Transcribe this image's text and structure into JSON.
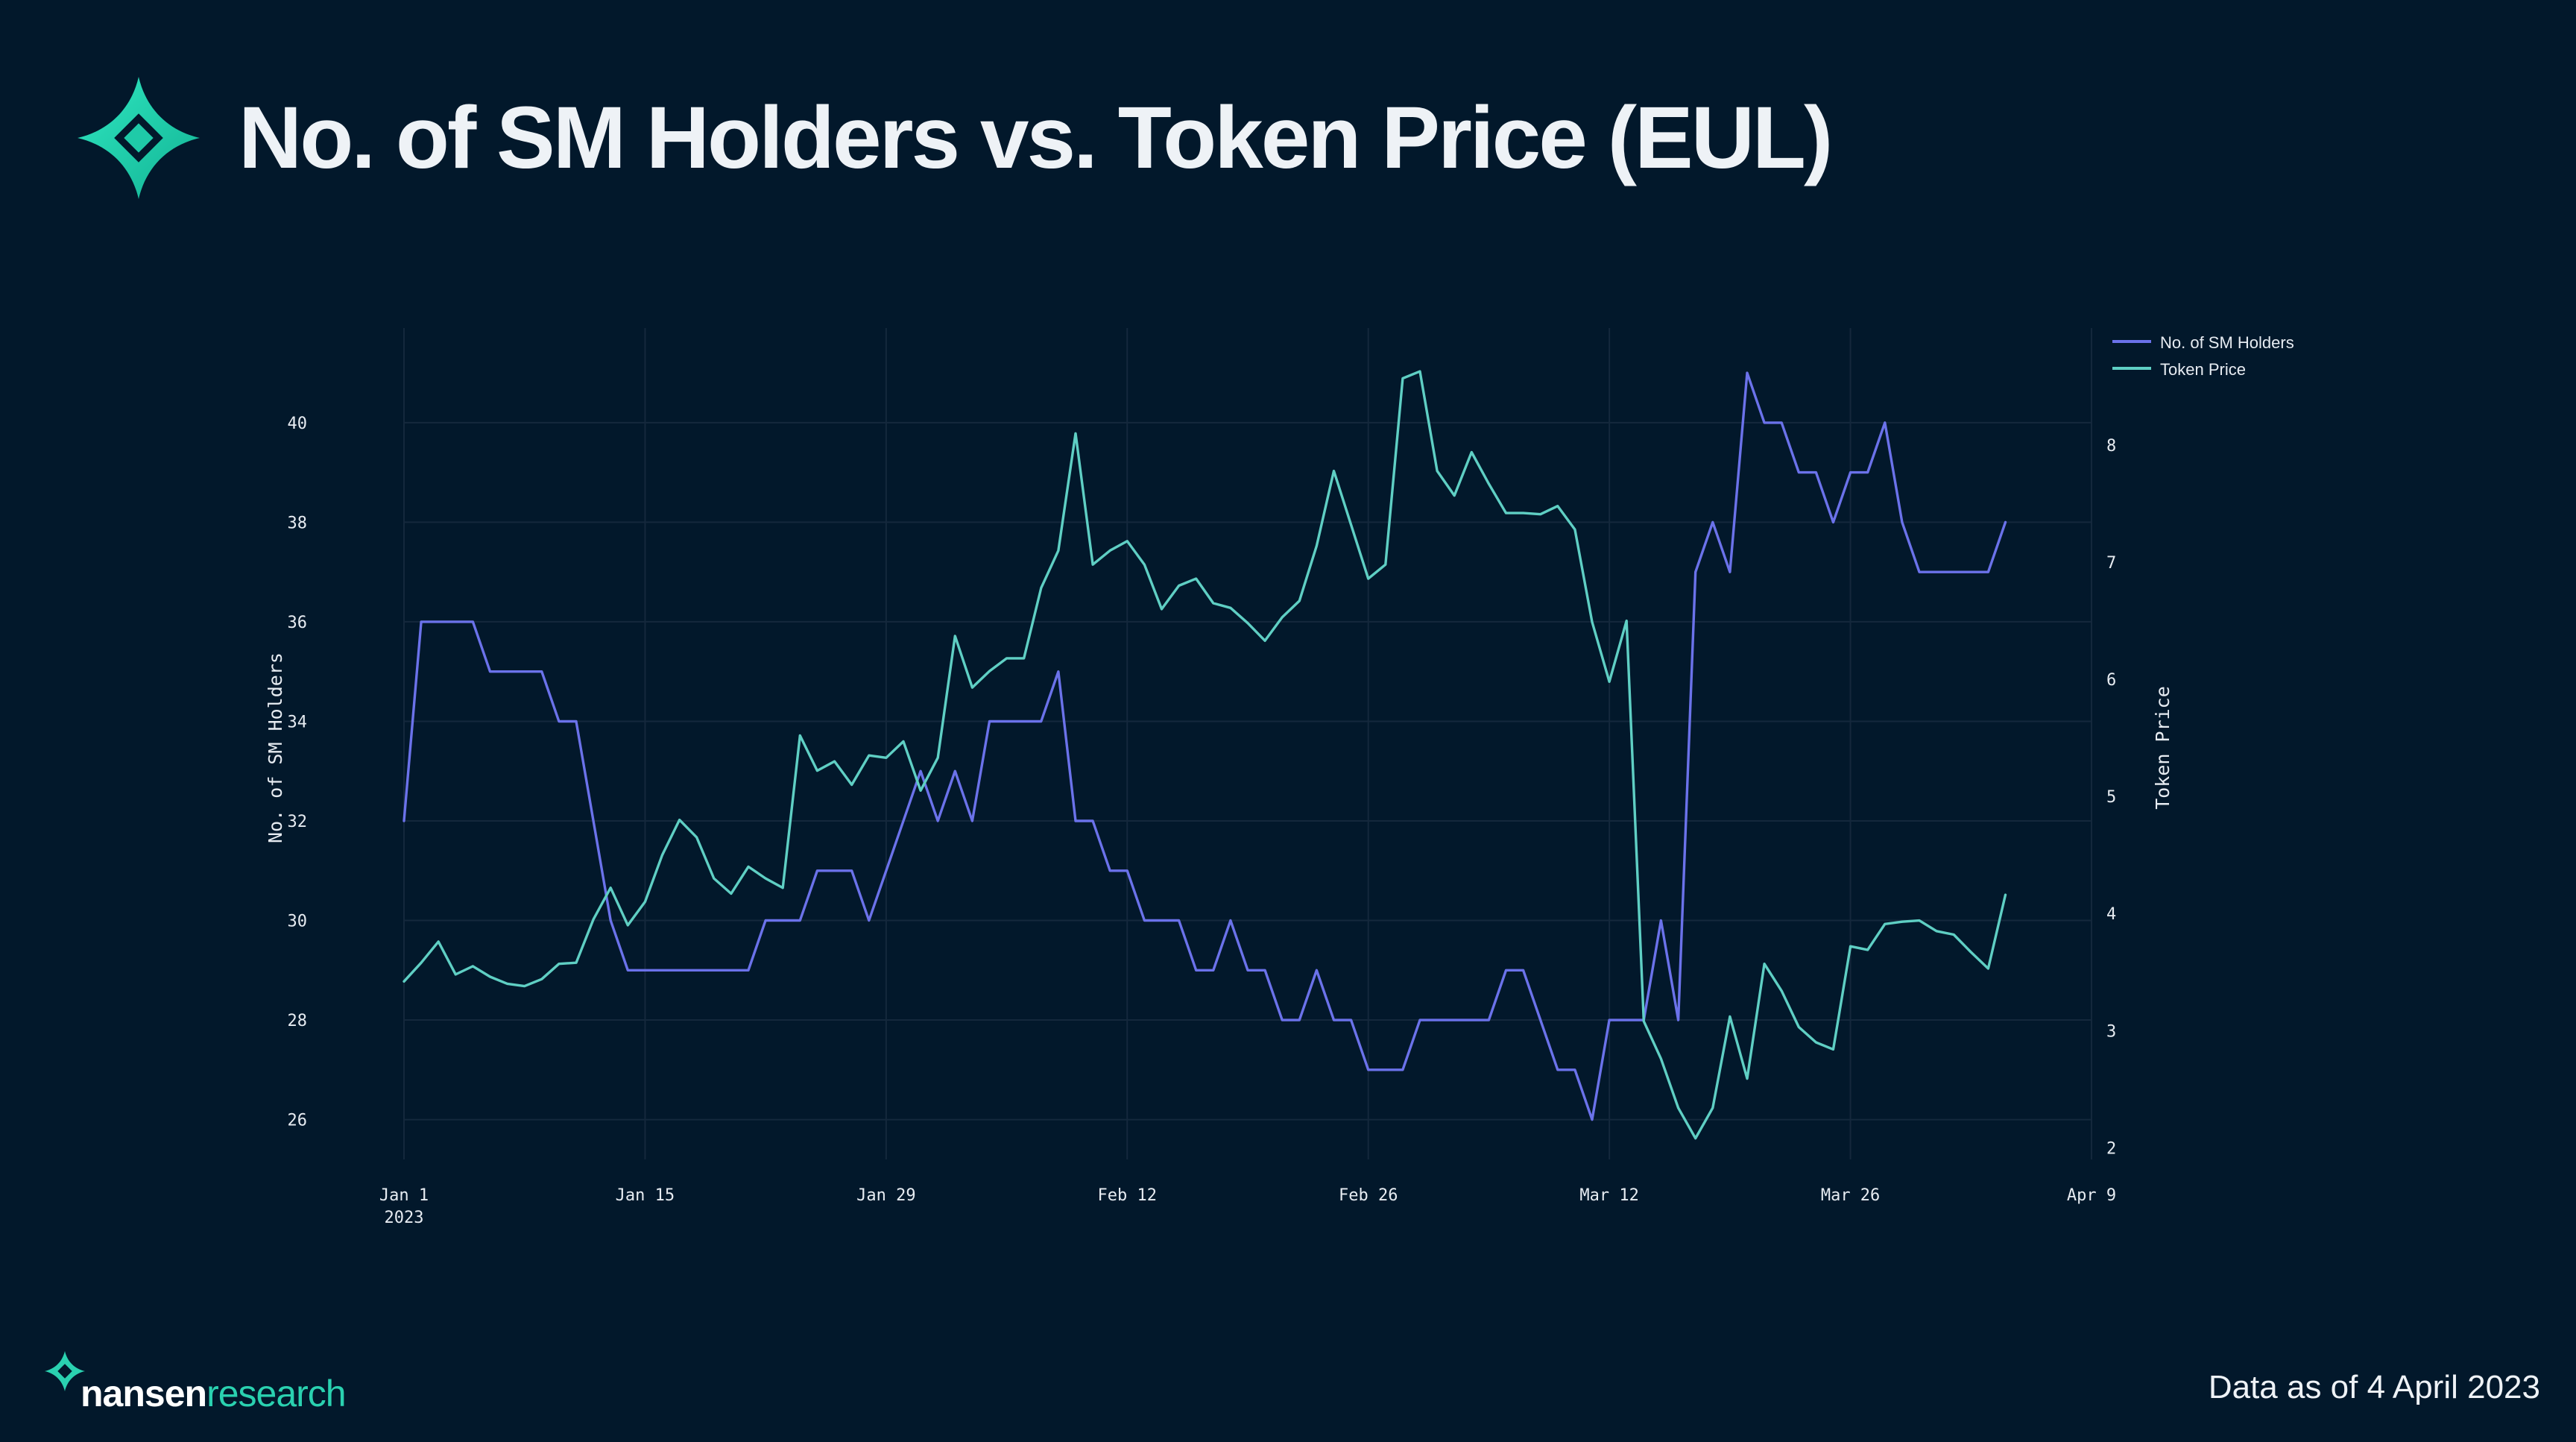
{
  "header": {
    "title": "No. of SM Holders vs. Token Price (EUL)",
    "logo_icon": "nansen-star-icon"
  },
  "footer": {
    "brand_bold": "nansen",
    "brand_light": "research",
    "date_note": "Data as of 4 April 2023"
  },
  "colors": {
    "background": "#02182b",
    "holders": "#6b72ea",
    "price": "#5fcfc4",
    "brand": "#2ad1b0"
  },
  "chart_data": {
    "type": "line",
    "title": "No. of SM Holders vs. Token Price (EUL)",
    "x_start": "2023-01-01",
    "x_tick_labels": [
      {
        "label": "Jan 1",
        "sub": "2023",
        "day": 0
      },
      {
        "label": "Jan 15",
        "sub": "",
        "day": 14
      },
      {
        "label": "Jan 29",
        "sub": "",
        "day": 28
      },
      {
        "label": "Feb 12",
        "sub": "",
        "day": 42
      },
      {
        "label": "Feb 26",
        "sub": "",
        "day": 56
      },
      {
        "label": "Mar 12",
        "sub": "",
        "day": 70
      },
      {
        "label": "Mar 26",
        "sub": "",
        "day": 84
      },
      {
        "label": "Apr 9",
        "sub": "",
        "day": 98
      }
    ],
    "xlim_days": [
      0,
      98
    ],
    "y_left": {
      "label": "No. of SM Holders",
      "range": [
        25.2,
        41.9
      ],
      "ticks": [
        26,
        28,
        30,
        32,
        34,
        36,
        38,
        40
      ]
    },
    "y_right": {
      "label": "Token Price",
      "range": [
        1.9,
        9.0
      ],
      "ticks": [
        2,
        3,
        4,
        5,
        6,
        7,
        8
      ]
    },
    "legend": [
      "No. of SM Holders",
      "Token Price"
    ],
    "series": [
      {
        "name": "No. of SM Holders",
        "axis": "left",
        "points": [
          [
            0,
            32
          ],
          [
            1,
            36
          ],
          [
            2,
            36
          ],
          [
            3,
            36
          ],
          [
            4,
            36
          ],
          [
            5,
            35
          ],
          [
            6,
            35
          ],
          [
            7,
            35
          ],
          [
            8,
            35
          ],
          [
            9,
            34
          ],
          [
            10,
            34
          ],
          [
            11,
            32
          ],
          [
            12,
            30
          ],
          [
            13,
            29
          ],
          [
            14,
            29
          ],
          [
            15,
            29
          ],
          [
            16,
            29
          ],
          [
            17,
            29
          ],
          [
            18,
            29
          ],
          [
            19,
            29
          ],
          [
            20,
            29
          ],
          [
            21,
            30
          ],
          [
            22,
            30
          ],
          [
            23,
            30
          ],
          [
            24,
            31
          ],
          [
            25,
            31
          ],
          [
            26,
            31
          ],
          [
            27,
            30
          ],
          [
            28,
            31
          ],
          [
            29,
            32
          ],
          [
            30,
            33
          ],
          [
            31,
            32
          ],
          [
            32,
            33
          ],
          [
            33,
            32
          ],
          [
            34,
            34
          ],
          [
            35,
            34
          ],
          [
            36,
            34
          ],
          [
            37,
            34
          ],
          [
            38,
            35
          ],
          [
            39,
            32
          ],
          [
            40,
            32
          ],
          [
            41,
            31
          ],
          [
            42,
            31
          ],
          [
            43,
            30
          ],
          [
            44,
            30
          ],
          [
            45,
            30
          ],
          [
            46,
            29
          ],
          [
            47,
            29
          ],
          [
            48,
            30
          ],
          [
            49,
            29
          ],
          [
            50,
            29
          ],
          [
            51,
            28
          ],
          [
            52,
            28
          ],
          [
            53,
            29
          ],
          [
            54,
            28
          ],
          [
            55,
            28
          ],
          [
            56,
            27
          ],
          [
            57,
            27
          ],
          [
            58,
            27
          ],
          [
            59,
            28
          ],
          [
            60,
            28
          ],
          [
            61,
            28
          ],
          [
            62,
            28
          ],
          [
            63,
            28
          ],
          [
            64,
            29
          ],
          [
            65,
            29
          ],
          [
            66,
            28
          ],
          [
            67,
            27
          ],
          [
            68,
            27
          ],
          [
            69,
            26
          ],
          [
            70,
            28
          ],
          [
            71,
            28
          ],
          [
            72,
            28
          ],
          [
            73,
            30
          ],
          [
            74,
            28
          ],
          [
            75,
            37
          ],
          [
            76,
            38
          ],
          [
            77,
            37
          ],
          [
            78,
            41
          ],
          [
            79,
            40
          ],
          [
            80,
            40
          ],
          [
            81,
            39
          ],
          [
            82,
            39
          ],
          [
            83,
            38
          ],
          [
            84,
            39
          ],
          [
            85,
            39
          ],
          [
            86,
            40
          ],
          [
            87,
            38
          ],
          [
            88,
            37
          ],
          [
            89,
            37
          ],
          [
            90,
            37
          ],
          [
            91,
            37
          ],
          [
            92,
            37
          ],
          [
            93,
            38
          ]
        ]
      },
      {
        "name": "Token Price",
        "axis": "right",
        "points": [
          [
            0,
            3.42
          ],
          [
            1,
            3.58
          ],
          [
            2,
            3.76
          ],
          [
            3,
            3.48
          ],
          [
            4,
            3.55
          ],
          [
            5,
            3.46
          ],
          [
            6,
            3.4
          ],
          [
            7,
            3.38
          ],
          [
            8,
            3.44
          ],
          [
            9,
            3.57
          ],
          [
            10,
            3.58
          ],
          [
            11,
            3.95
          ],
          [
            12,
            4.22
          ],
          [
            13,
            3.9
          ],
          [
            14,
            4.1
          ],
          [
            15,
            4.5
          ],
          [
            16,
            4.8
          ],
          [
            17,
            4.65
          ],
          [
            18,
            4.3
          ],
          [
            19,
            4.17
          ],
          [
            20,
            4.4
          ],
          [
            21,
            4.3
          ],
          [
            22,
            4.22
          ],
          [
            23,
            5.52
          ],
          [
            24,
            5.22
          ],
          [
            25,
            5.3
          ],
          [
            26,
            5.1
          ],
          [
            27,
            5.35
          ],
          [
            28,
            5.33
          ],
          [
            29,
            5.47
          ],
          [
            30,
            5.05
          ],
          [
            31,
            5.33
          ],
          [
            32,
            6.37
          ],
          [
            33,
            5.93
          ],
          [
            34,
            6.07
          ],
          [
            35,
            6.18
          ],
          [
            36,
            6.18
          ],
          [
            37,
            6.78
          ],
          [
            38,
            7.1
          ],
          [
            39,
            8.1
          ],
          [
            40,
            6.98
          ],
          [
            41,
            7.1
          ],
          [
            42,
            7.18
          ],
          [
            43,
            6.98
          ],
          [
            44,
            6.6
          ],
          [
            45,
            6.8
          ],
          [
            46,
            6.86
          ],
          [
            47,
            6.65
          ],
          [
            48,
            6.61
          ],
          [
            49,
            6.48
          ],
          [
            50,
            6.33
          ],
          [
            51,
            6.53
          ],
          [
            52,
            6.67
          ],
          [
            53,
            7.14
          ],
          [
            54,
            7.78
          ],
          [
            55,
            7.32
          ],
          [
            56,
            6.86
          ],
          [
            57,
            6.98
          ],
          [
            58,
            8.57
          ],
          [
            59,
            8.63
          ],
          [
            60,
            7.78
          ],
          [
            61,
            7.57
          ],
          [
            62,
            7.94
          ],
          [
            63,
            7.67
          ],
          [
            64,
            7.42
          ],
          [
            65,
            7.42
          ],
          [
            66,
            7.41
          ],
          [
            67,
            7.48
          ],
          [
            68,
            7.28
          ],
          [
            69,
            6.49
          ],
          [
            70,
            5.98
          ],
          [
            71,
            6.5
          ],
          [
            72,
            3.08
          ],
          [
            73,
            2.76
          ],
          [
            74,
            2.34
          ],
          [
            75,
            2.08
          ],
          [
            76,
            2.34
          ],
          [
            77,
            3.12
          ],
          [
            78,
            2.59
          ],
          [
            79,
            3.57
          ],
          [
            80,
            3.34
          ],
          [
            81,
            3.03
          ],
          [
            82,
            2.9
          ],
          [
            83,
            2.84
          ],
          [
            84,
            3.72
          ],
          [
            85,
            3.69
          ],
          [
            86,
            3.91
          ],
          [
            87,
            3.93
          ],
          [
            88,
            3.94
          ],
          [
            89,
            3.85
          ],
          [
            90,
            3.82
          ],
          [
            91,
            3.67
          ],
          [
            92,
            3.53
          ],
          [
            93,
            4.16
          ]
        ]
      }
    ]
  }
}
